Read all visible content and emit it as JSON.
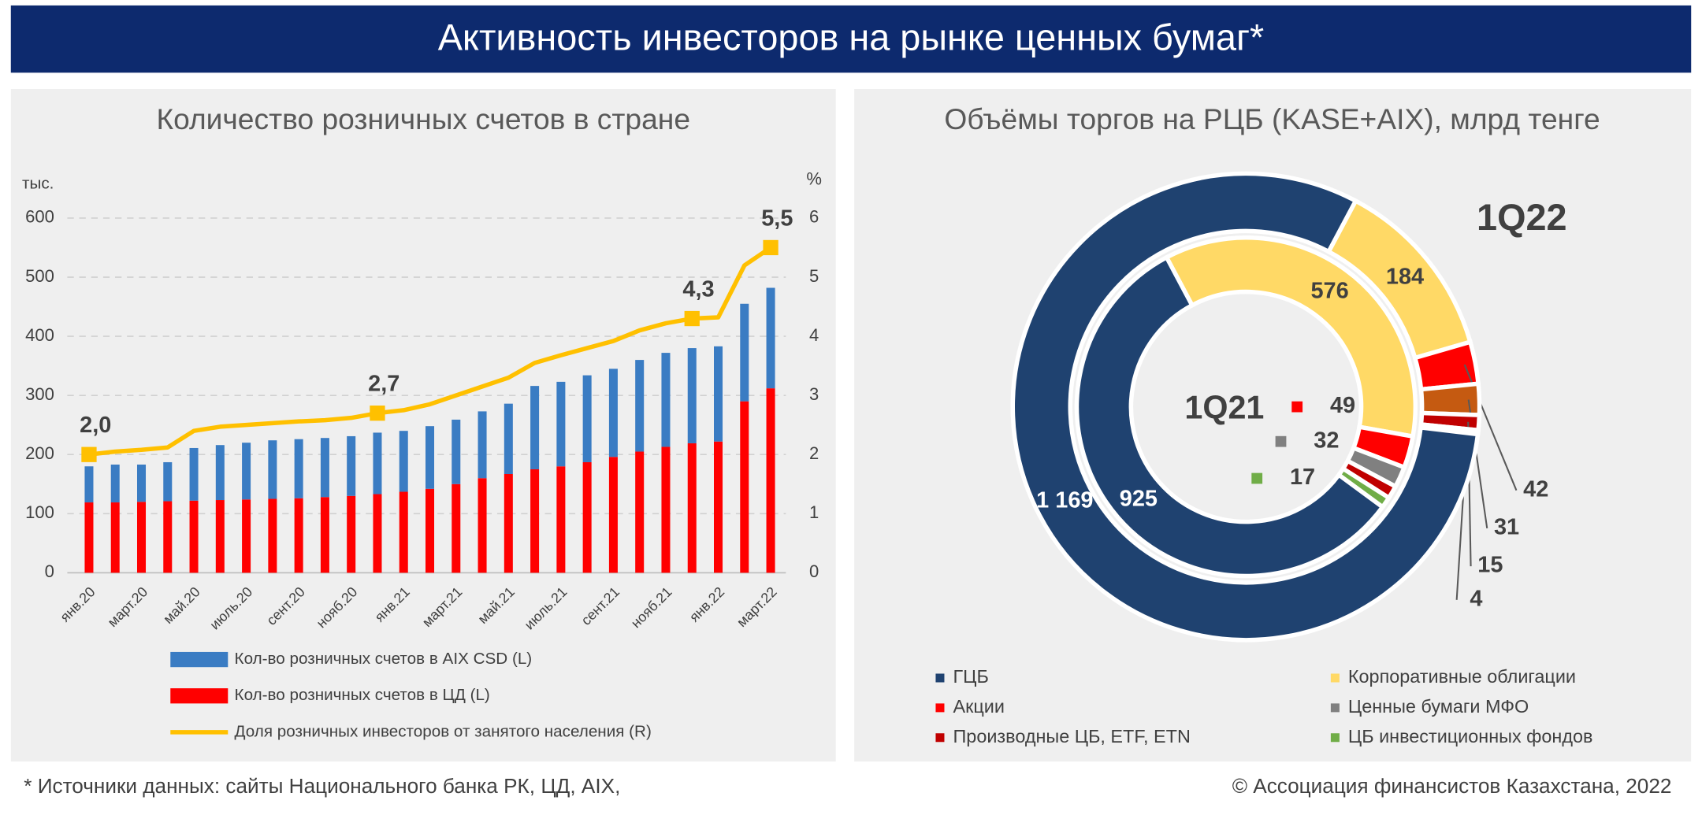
{
  "header": {
    "title": "Активность инвесторов на рынке ценных бумаг*"
  },
  "chart_data": [
    {
      "type": "bar",
      "stacked": true,
      "title": "Количество розничных счетов в стране",
      "ylabel": "тыс.",
      "y2label": "%",
      "categories": [
        "янв.20",
        null,
        "март.20",
        null,
        "май.20",
        null,
        "июль.20",
        null,
        "сент.20",
        null,
        "нояб.20",
        null,
        "янв.21",
        null,
        "март.21",
        null,
        "май.21",
        null,
        "июль.21",
        null,
        "сент.21",
        null,
        "нояб.21",
        null,
        "янв.22",
        null,
        "март.22"
      ],
      "series": [
        {
          "name": "Кол-во розничных счетов в AIX CSD (L)",
          "color": "#3a7cc3",
          "values": [
            61,
            64,
            63,
            66,
            89,
            93,
            96,
            99,
            100,
            100,
            101,
            104,
            103,
            106,
            109,
            113,
            119,
            141,
            143,
            147,
            149,
            155,
            159,
            161,
            161,
            165,
            170
          ]
        },
        {
          "name": "Кол-во розничных счетов в ЦД (L)",
          "color": "#ff0000",
          "values": [
            119,
            119,
            120,
            121,
            122,
            123,
            124,
            125,
            126,
            128,
            130,
            133,
            137,
            142,
            150,
            160,
            167,
            175,
            180,
            187,
            196,
            205,
            213,
            219,
            222,
            290,
            312
          ]
        },
        {
          "name": "Доля розничных инвесторов от занятого населения (R)",
          "type": "line",
          "axis": "y2",
          "color": "#ffc000",
          "values": [
            2.0,
            2.05,
            2.08,
            2.12,
            2.4,
            2.47,
            2.5,
            2.53,
            2.56,
            2.58,
            2.62,
            2.7,
            2.75,
            2.85,
            3.0,
            3.15,
            3.3,
            3.55,
            3.68,
            3.8,
            3.92,
            4.1,
            4.22,
            4.3,
            4.32,
            5.2,
            5.5
          ],
          "value_labels": [
            "2,0",
            null,
            null,
            null,
            null,
            null,
            null,
            null,
            null,
            null,
            null,
            "2,7",
            null,
            null,
            null,
            null,
            null,
            null,
            null,
            null,
            null,
            null,
            null,
            "4,3",
            null,
            null,
            "5,5"
          ]
        }
      ],
      "ylim": [
        0,
        600
      ],
      "yticks": [
        0,
        100,
        200,
        300,
        400,
        500,
        600
      ],
      "y2lim": [
        0,
        6
      ],
      "y2ticks": [
        0,
        1,
        2,
        3,
        4,
        5,
        6
      ],
      "grid": true
    },
    {
      "type": "pie",
      "title": "Объёмы торгов на РЦБ (KASE+AIX), млрд тенге",
      "categories": [
        "ГЦБ",
        "Корпоративные облигации",
        "Акции",
        "Ценные бумаги МФО",
        "Производные ЦБ, ETF, ETN",
        "ЦБ инвестиционных фондов"
      ],
      "colors": [
        "#1f4270",
        "#ffd966",
        "#ff0000",
        "#808080",
        "#c00000",
        "#70ad47"
      ],
      "series": [
        {
          "name": "1Q22",
          "values": [
            1169,
            184,
            42,
            31,
            15,
            4
          ],
          "value_labels": [
            "1 169",
            "184",
            "42",
            "31",
            "15",
            "4"
          ],
          "colors": [
            "#1f4270",
            "#ffd966",
            "#ff0000",
            "#c55a11",
            "#c00000",
            "#70ad47"
          ]
        },
        {
          "name": "1Q21",
          "values": [
            925,
            576,
            49,
            32,
            20,
            17
          ],
          "value_labels": [
            "925",
            "576",
            "49",
            "32",
            null,
            "17"
          ],
          "colors": [
            "#1f4270",
            "#ffd966",
            "#ff0000",
            "#808080",
            "#c00000",
            "#70ad47"
          ]
        }
      ]
    }
  ],
  "footer": {
    "source": "* Источники данных: сайты Национального банка РК, ЦД, AIX,",
    "copyright": "© Ассоциация финансистов Казахстана, 2022"
  }
}
